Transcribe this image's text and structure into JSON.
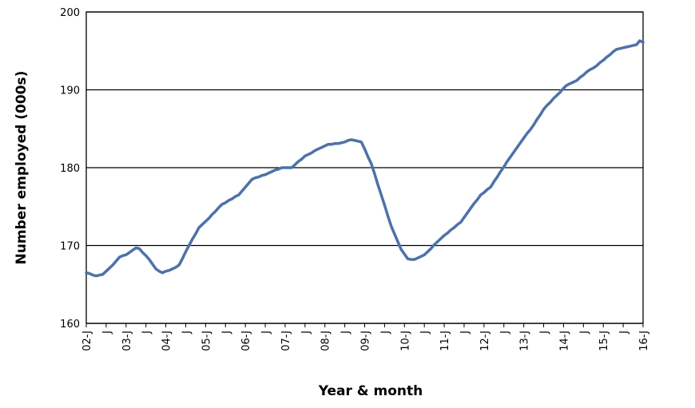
{
  "chart_data": {
    "type": "line",
    "y_label": "Number employed (000s)",
    "x_label": "Year & month",
    "categories": [
      "02-J",
      null,
      null,
      null,
      null,
      null,
      "J",
      null,
      null,
      null,
      null,
      null,
      "03-J",
      null,
      null,
      null,
      null,
      null,
      "J",
      null,
      null,
      null,
      null,
      null,
      "04-J",
      null,
      null,
      null,
      null,
      null,
      "J",
      null,
      null,
      null,
      null,
      null,
      "05-J",
      null,
      null,
      null,
      null,
      null,
      "J",
      null,
      null,
      null,
      null,
      null,
      "06-J",
      null,
      null,
      null,
      null,
      null,
      "J",
      null,
      null,
      null,
      null,
      null,
      "07-J",
      null,
      null,
      null,
      null,
      null,
      "J",
      null,
      null,
      null,
      null,
      null,
      "08-J",
      null,
      null,
      null,
      null,
      null,
      "J",
      null,
      null,
      null,
      null,
      null,
      "09-J",
      null,
      null,
      null,
      null,
      null,
      "J",
      null,
      null,
      null,
      null,
      null,
      "10-J",
      null,
      null,
      null,
      null,
      null,
      "J",
      null,
      null,
      null,
      null,
      null,
      "11-J",
      null,
      null,
      null,
      null,
      null,
      "J",
      null,
      null,
      null,
      null,
      null,
      "12-J",
      null,
      null,
      null,
      null,
      null,
      "J",
      null,
      null,
      null,
      null,
      null,
      "13-J",
      null,
      null,
      null,
      null,
      null,
      "J",
      null,
      null,
      null,
      null,
      null,
      "14-J",
      null,
      null,
      null,
      null,
      null,
      "J",
      null,
      null,
      null,
      null,
      null,
      "15-J",
      null,
      null,
      null,
      null,
      null,
      "J",
      null,
      null,
      null,
      null,
      null,
      "16-J"
    ],
    "values": [
      166.5,
      166.4,
      166.2,
      166.1,
      166.2,
      166.3,
      166.7,
      167.1,
      167.5,
      168.0,
      168.5,
      168.7,
      168.8,
      169.1,
      169.4,
      169.7,
      169.6,
      169.1,
      168.7,
      168.2,
      167.6,
      167.0,
      166.7,
      166.5,
      166.7,
      166.8,
      167.0,
      167.2,
      167.5,
      168.3,
      169.2,
      170.0,
      170.8,
      171.5,
      172.3,
      172.7,
      173.1,
      173.5,
      174.0,
      174.4,
      174.9,
      175.3,
      175.5,
      175.8,
      176.0,
      176.3,
      176.5,
      177.0,
      177.5,
      178.0,
      178.5,
      178.7,
      178.8,
      179.0,
      179.1,
      179.3,
      179.5,
      179.7,
      179.8,
      180.0,
      180.0,
      180.0,
      180.0,
      180.4,
      180.8,
      181.1,
      181.5,
      181.7,
      181.9,
      182.2,
      182.4,
      182.6,
      182.8,
      183.0,
      183.0,
      183.1,
      183.1,
      183.2,
      183.3,
      183.5,
      183.6,
      183.5,
      183.4,
      183.3,
      182.4,
      181.4,
      180.5,
      179.2,
      177.8,
      176.5,
      175.2,
      173.8,
      172.5,
      171.5,
      170.5,
      169.5,
      168.9,
      168.3,
      168.2,
      168.2,
      168.4,
      168.6,
      168.8,
      169.2,
      169.6,
      170.1,
      170.5,
      170.9,
      171.3,
      171.6,
      172.0,
      172.3,
      172.7,
      173.0,
      173.6,
      174.2,
      174.8,
      175.4,
      175.9,
      176.5,
      176.8,
      177.2,
      177.5,
      178.2,
      178.8,
      179.5,
      180.1,
      180.8,
      181.4,
      182.0,
      182.6,
      183.2,
      183.8,
      184.4,
      184.9,
      185.5,
      186.2,
      186.8,
      187.5,
      188.0,
      188.4,
      188.9,
      189.3,
      189.7,
      190.2,
      190.6,
      190.8,
      191.0,
      191.2,
      191.6,
      191.9,
      192.3,
      192.6,
      192.8,
      193.1,
      193.5,
      193.8,
      194.2,
      194.5,
      194.9,
      195.2,
      195.3,
      195.4,
      195.5,
      195.6,
      195.7,
      195.8,
      196.3,
      196.1
    ],
    "color": "#4a72b0",
    "ylim": [
      160,
      200
    ],
    "yticks": [
      160,
      170,
      180,
      190,
      200
    ],
    "grid": true
  }
}
